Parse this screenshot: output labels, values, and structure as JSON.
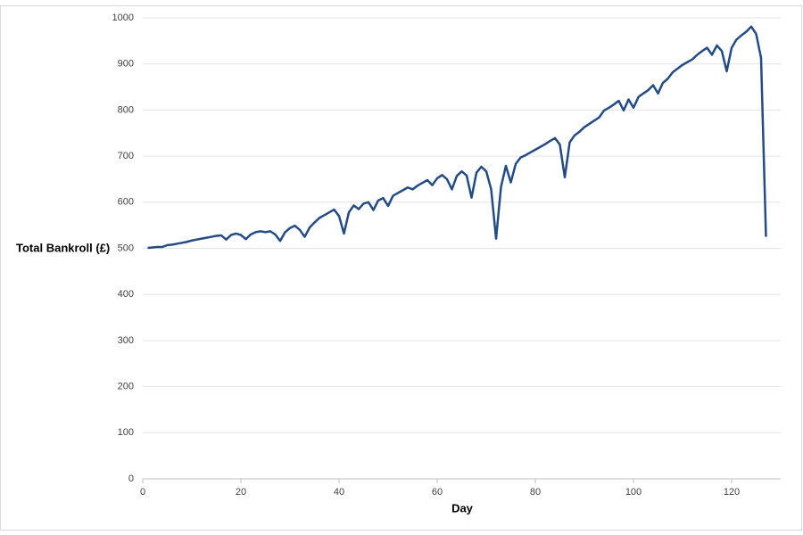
{
  "chart_data": {
    "type": "line",
    "xlabel": "Day",
    "ylabel": "Total Bankroll (£)",
    "xlim": [
      0,
      130
    ],
    "xticks": [
      0,
      20,
      40,
      60,
      80,
      100,
      120
    ],
    "ylim": [
      0,
      1000
    ],
    "yticks": [
      0,
      100,
      200,
      300,
      400,
      500,
      600,
      700,
      800,
      900,
      1000
    ],
    "grid": true,
    "color": "#234b86",
    "x": [
      1,
      2,
      3,
      4,
      5,
      6,
      7,
      8,
      9,
      10,
      11,
      12,
      13,
      14,
      15,
      16,
      17,
      18,
      19,
      20,
      21,
      22,
      23,
      24,
      25,
      26,
      27,
      28,
      29,
      30,
      31,
      32,
      33,
      34,
      35,
      36,
      37,
      38,
      39,
      40,
      41,
      42,
      43,
      44,
      45,
      46,
      47,
      48,
      49,
      50,
      51,
      52,
      53,
      54,
      55,
      56,
      57,
      58,
      59,
      60,
      61,
      62,
      63,
      64,
      65,
      66,
      67,
      68,
      69,
      70,
      71,
      72,
      73,
      74,
      75,
      76,
      77,
      78,
      79,
      80,
      81,
      82,
      83,
      84,
      85,
      86,
      87,
      88,
      89,
      90,
      91,
      92,
      93,
      94,
      95,
      96,
      97,
      98,
      99,
      100,
      101,
      102,
      103,
      104,
      105,
      106,
      107,
      108,
      109,
      110,
      111,
      112,
      113,
      114,
      115,
      116,
      117,
      118,
      119,
      120,
      121,
      122,
      123,
      124,
      125,
      126,
      127
    ],
    "values": [
      501,
      502,
      503,
      503,
      507,
      508,
      510,
      512,
      514,
      517,
      519,
      521,
      523,
      525,
      527,
      528,
      519,
      529,
      532,
      529,
      520,
      530,
      535,
      537,
      535,
      537,
      530,
      516,
      535,
      544,
      549,
      540,
      525,
      545,
      556,
      566,
      572,
      578,
      584,
      570,
      532,
      578,
      593,
      585,
      597,
      600,
      583,
      604,
      609,
      592,
      614,
      620,
      626,
      632,
      628,
      636,
      642,
      648,
      637,
      652,
      659,
      650,
      628,
      657,
      667,
      658,
      610,
      664,
      677,
      667,
      628,
      521,
      633,
      679,
      643,
      683,
      697,
      702,
      708,
      714,
      720,
      726,
      733,
      739,
      725,
      654,
      730,
      745,
      753,
      763,
      770,
      777,
      784,
      799,
      805,
      812,
      820,
      799,
      823,
      805,
      828,
      836,
      843,
      854,
      836,
      859,
      868,
      882,
      890,
      898,
      904,
      910,
      920,
      928,
      935,
      920,
      940,
      928,
      884,
      935,
      953,
      962,
      970,
      981,
      965,
      913,
      525
    ]
  }
}
